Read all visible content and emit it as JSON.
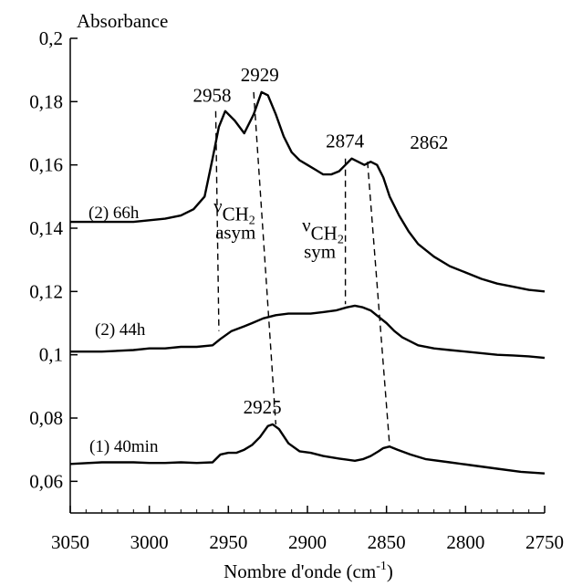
{
  "chart_data": {
    "type": "line",
    "title": "",
    "ylabel": "Absorbance",
    "xlabel_main": "Nombre d'onde (cm",
    "xlabel_sup": "-1",
    "xlabel_close": ")",
    "xlim": [
      3050,
      2750
    ],
    "ylim": [
      0.05,
      0.2
    ],
    "x_ticks": [
      3050,
      3000,
      2950,
      2900,
      2850,
      2800,
      2750
    ],
    "x_tick_labels": [
      "3050",
      "3000",
      "2950",
      "2900",
      "2850",
      "2800",
      "2750"
    ],
    "y_ticks": [
      0.06,
      0.08,
      0.1,
      0.12,
      0.14,
      0.16,
      0.18,
      0.2
    ],
    "y_tick_labels": [
      "0,06",
      "0,08",
      "0,1",
      "0,12",
      "0,14",
      "0,16",
      "0,18",
      "0,2"
    ],
    "grid": false,
    "series": [
      {
        "name": "(1) 40min",
        "x": [
          3050,
          3030,
          3010,
          3000,
          2990,
          2980,
          2970,
          2960,
          2955,
          2950,
          2945,
          2940,
          2935,
          2930,
          2925,
          2922,
          2918,
          2912,
          2905,
          2898,
          2890,
          2880,
          2870,
          2865,
          2860,
          2855,
          2852,
          2848,
          2843,
          2835,
          2825,
          2810,
          2795,
          2780,
          2765,
          2750
        ],
        "y": [
          0.0655,
          0.066,
          0.066,
          0.0658,
          0.0658,
          0.066,
          0.0658,
          0.066,
          0.0685,
          0.069,
          0.069,
          0.07,
          0.0715,
          0.074,
          0.0775,
          0.078,
          0.0765,
          0.072,
          0.0695,
          0.069,
          0.068,
          0.0672,
          0.0665,
          0.067,
          0.068,
          0.0695,
          0.0705,
          0.071,
          0.07,
          0.0685,
          0.067,
          0.066,
          0.065,
          0.064,
          0.063,
          0.0625
        ]
      },
      {
        "name": "(2) 44h",
        "x": [
          3050,
          3030,
          3010,
          3000,
          2990,
          2980,
          2970,
          2960,
          2955,
          2948,
          2940,
          2935,
          2928,
          2920,
          2912,
          2905,
          2898,
          2890,
          2882,
          2875,
          2870,
          2865,
          2860,
          2855,
          2850,
          2845,
          2840,
          2830,
          2820,
          2810,
          2800,
          2790,
          2780,
          2770,
          2760,
          2750
        ],
        "y": [
          0.101,
          0.101,
          0.1015,
          0.102,
          0.102,
          0.1025,
          0.1025,
          0.103,
          0.105,
          0.1075,
          0.109,
          0.11,
          0.1115,
          0.1125,
          0.113,
          0.113,
          0.113,
          0.1135,
          0.114,
          0.115,
          0.1155,
          0.115,
          0.114,
          0.112,
          0.11,
          0.1075,
          0.1055,
          0.103,
          0.102,
          0.1015,
          0.101,
          0.1005,
          0.1,
          0.0998,
          0.0995,
          0.099
        ]
      },
      {
        "name": "(2) 66h",
        "x": [
          3050,
          3030,
          3010,
          3000,
          2990,
          2980,
          2972,
          2965,
          2960,
          2956,
          2952,
          2946,
          2940,
          2934,
          2929,
          2925,
          2920,
          2915,
          2910,
          2905,
          2900,
          2895,
          2890,
          2885,
          2880,
          2876,
          2872,
          2868,
          2864,
          2860,
          2856,
          2852,
          2848,
          2842,
          2836,
          2830,
          2820,
          2810,
          2800,
          2790,
          2780,
          2770,
          2760,
          2750
        ],
        "y": [
          0.142,
          0.142,
          0.142,
          0.1425,
          0.143,
          0.144,
          0.146,
          0.15,
          0.162,
          0.172,
          0.177,
          0.174,
          0.17,
          0.176,
          0.183,
          0.182,
          0.176,
          0.169,
          0.164,
          0.1615,
          0.16,
          0.1585,
          0.157,
          0.157,
          0.158,
          0.16,
          0.162,
          0.161,
          0.16,
          0.161,
          0.16,
          0.156,
          0.15,
          0.144,
          0.139,
          0.135,
          0.131,
          0.128,
          0.126,
          0.124,
          0.1225,
          0.1215,
          0.1205,
          0.12
        ]
      }
    ],
    "peak_labels": [
      {
        "text": "2958",
        "x": 2958,
        "y": 0.177
      },
      {
        "text": "2929",
        "x": 2929,
        "y": 0.183
      },
      {
        "text": "2874",
        "x": 2874,
        "y": 0.162
      },
      {
        "text": "2862",
        "x": 2845,
        "y": 0.161
      },
      {
        "text": "2925",
        "x": 2925,
        "y": 0.078
      }
    ],
    "dashed_lines": [
      {
        "x1": 2958,
        "y1": 0.177,
        "x2": 2956,
        "y2": 0.1075
      },
      {
        "x1": 2934,
        "y1": 0.183,
        "x2": 2920,
        "y2": 0.078
      },
      {
        "x1": 2876,
        "y1": 0.162,
        "x2": 2876,
        "y2": 0.116
      },
      {
        "x1": 2862,
        "y1": 0.161,
        "x2": 2848,
        "y2": 0.071
      }
    ],
    "annotations": [
      {
        "symbol": "ν",
        "sub": "CH",
        "sub2": "2",
        "mode": "asym",
        "x": 2934,
        "y": 0.145
      },
      {
        "symbol": "ν",
        "sub": "CH",
        "sub2": "2",
        "mode": "sym",
        "x": 2878,
        "y": 0.139
      }
    ]
  }
}
